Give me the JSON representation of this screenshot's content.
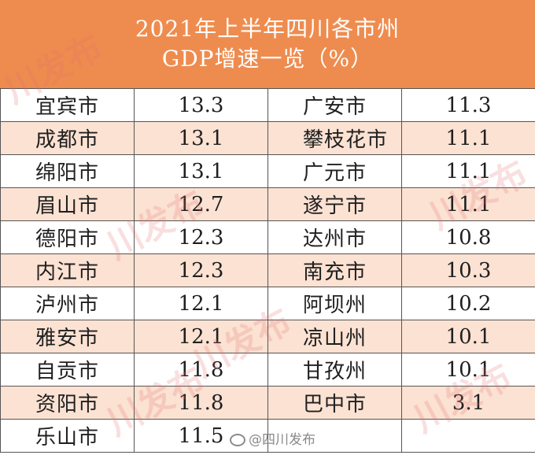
{
  "header": {
    "line1": "2021年上半年四川各市州",
    "line2": "GDP增速一览（%）"
  },
  "rows": [
    {
      "left_name": "宜宾市",
      "left_value": "13.3",
      "right_name": "广安市",
      "right_value": "11.3"
    },
    {
      "left_name": "成都市",
      "left_value": "13.1",
      "right_name": "攀枝花市",
      "right_value": "11.1"
    },
    {
      "left_name": "绵阳市",
      "left_value": "13.1",
      "right_name": "广元市",
      "right_value": "11.1"
    },
    {
      "left_name": "眉山市",
      "left_value": "12.7",
      "right_name": "遂宁市",
      "right_value": "11.1"
    },
    {
      "left_name": "德阳市",
      "left_value": "12.3",
      "right_name": "达州市",
      "right_value": "10.8"
    },
    {
      "left_name": "内江市",
      "left_value": "12.3",
      "right_name": "南充市",
      "right_value": "10.3"
    },
    {
      "left_name": "泸州市",
      "left_value": "12.1",
      "right_name": "阿坝州",
      "right_value": "10.2"
    },
    {
      "left_name": "雅安市",
      "left_value": "12.1",
      "right_name": "凉山州",
      "right_value": "10.1"
    },
    {
      "left_name": "自贡市",
      "left_value": "11.8",
      "right_name": "甘孜州",
      "right_value": "10.1"
    },
    {
      "left_name": "资阳市",
      "left_value": "11.8",
      "right_name": "巴中市",
      "right_value": "3.1"
    },
    {
      "left_name": "乐山市",
      "left_value": "11.5",
      "right_name": "",
      "right_value": ""
    }
  ],
  "watermark": "川发布",
  "footer": "@四川发布",
  "colors": {
    "header_bg": "#ee8c4f",
    "stripe": "#fbe2d3",
    "border": "#555555"
  }
}
